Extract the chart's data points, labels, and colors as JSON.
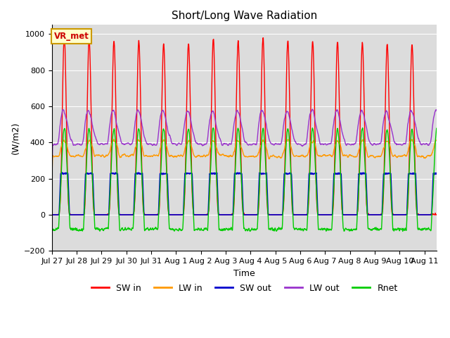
{
  "title": "Short/Long Wave Radiation",
  "xlabel": "Time",
  "ylabel": "(W/m2)",
  "ylim": [
    -200,
    1050
  ],
  "yticks": [
    -200,
    0,
    200,
    400,
    600,
    800,
    1000
  ],
  "bg_color": "#dcdcdc",
  "legend_labels": [
    "SW in",
    "LW in",
    "SW out",
    "LW out",
    "Rnet"
  ],
  "legend_colors": [
    "#ff0000",
    "#ff9900",
    "#0000cc",
    "#9933cc",
    "#00cc00"
  ],
  "annotation_text": "VR_met",
  "annotation_color": "#cc0000",
  "annotation_bg": "#ffffcc",
  "annotation_border": "#cc9900",
  "x_tick_labels": [
    "Jul 27",
    "Jul 28",
    "Jul 29",
    "Jul 30",
    "Jul 31",
    "Aug 1",
    "Aug 2",
    "Aug 3",
    "Aug 4",
    "Aug 5",
    "Aug 6",
    "Aug 7",
    "Aug 8",
    "Aug 9",
    "Aug 10",
    "Aug 11"
  ],
  "n_days": 16,
  "SW_in_peaks": [
    985,
    975,
    962,
    960,
    945,
    945,
    975,
    960,
    978,
    962,
    958,
    955,
    952,
    945,
    942,
    0
  ],
  "LW_in_base": 325,
  "LW_in_day_add": 85,
  "SW_out_day": 228,
  "LW_out_night": 390,
  "LW_out_peak": 625,
  "Rnet_night": -80,
  "Rnet_peak": 478,
  "grid_color": "#ffffff",
  "dt": 0.25
}
